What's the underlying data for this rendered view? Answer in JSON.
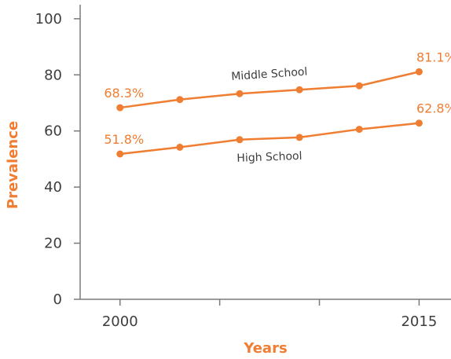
{
  "colors": {
    "accent": "#ef7d32",
    "axis": "#7a7a7a",
    "text": "#3d3d3d"
  },
  "chart_data": {
    "type": "line",
    "title": "",
    "xlabel": "Years",
    "ylabel": "Prevalence",
    "xlim": [
      1998,
      2016.6
    ],
    "ylim": [
      0,
      105
    ],
    "x_ticks": [
      2000,
      2015
    ],
    "x_minor_ticks": [
      2005,
      2010
    ],
    "y_ticks": [
      0,
      20,
      40,
      60,
      80,
      100
    ],
    "grid": false,
    "legend": "none",
    "series": [
      {
        "name": "Middle School",
        "x": [
          2000,
          2003,
          2006,
          2009,
          2012,
          2015
        ],
        "y": [
          68.3,
          71.2,
          73.3,
          74.7,
          76.1,
          81.1
        ],
        "labels": [
          {
            "index": 0,
            "text": "68.3%"
          },
          {
            "index": 5,
            "text": "81.1%"
          }
        ]
      },
      {
        "name": "High School",
        "x": [
          2000,
          2003,
          2006,
          2009,
          2012,
          2015
        ],
        "y": [
          51.8,
          54.2,
          56.9,
          57.7,
          60.6,
          62.8
        ],
        "labels": [
          {
            "index": 0,
            "text": "51.8%"
          },
          {
            "index": 5,
            "text": "62.8%"
          }
        ]
      }
    ]
  }
}
